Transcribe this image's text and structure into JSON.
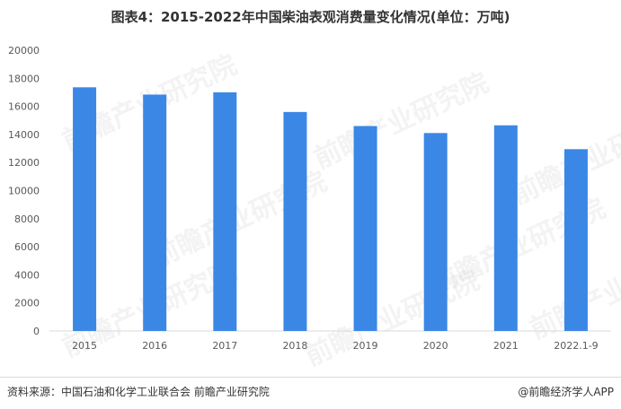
{
  "title": "图表4：2015-2022年中国柴油表观消费量变化情况(单位：万吨)",
  "watermark_text": "前瞻产业研究院",
  "footer": {
    "source": "资料来源：中国石油和化学工业联合会 前瞻产业研究院",
    "credit": "@前瞻经济学人APP"
  },
  "colors": {
    "bar": "#3b87e6",
    "axis": "#d9d9d9",
    "text": "#595959"
  },
  "chart_data": {
    "type": "bar",
    "title": "图表4：2015-2022年中国柴油表观消费量变化情况(单位：万吨)",
    "categories": [
      "2015",
      "2016",
      "2017",
      "2018",
      "2019",
      "2020",
      "2021",
      "2022.1-9"
    ],
    "values": [
      17360,
      16840,
      17000,
      15600,
      14600,
      14100,
      14650,
      12950
    ],
    "ylim": [
      0,
      20000
    ],
    "yticks": [
      0,
      2000,
      4000,
      6000,
      8000,
      10000,
      12000,
      14000,
      16000,
      18000,
      20000
    ],
    "xlabel": "",
    "ylabel": "",
    "grid": false,
    "legend": "none"
  }
}
